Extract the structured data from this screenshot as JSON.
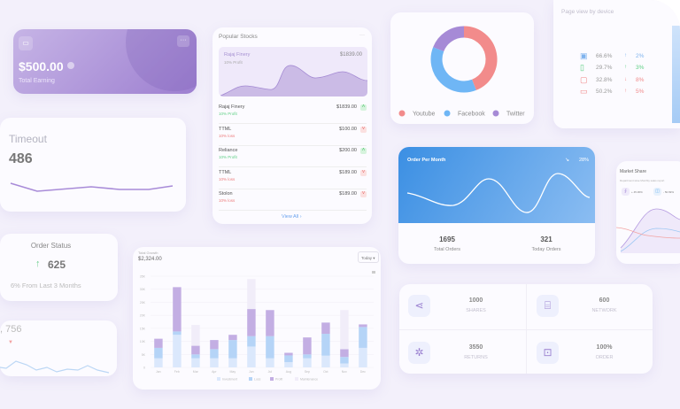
{
  "earning": {
    "amount": "$500.00",
    "label": "Total Earning",
    "menu": "···"
  },
  "timeout": {
    "title": "Timeout",
    "value": "486"
  },
  "order_status": {
    "title": "Order Status",
    "value": "625",
    "sub": "6% From Last 3 Months"
  },
  "card756": {
    "value": ", 756"
  },
  "stocks": {
    "title": "Popular Stocks",
    "menu": "···",
    "featured": {
      "name": "Rajaj Finery",
      "sub": "10% Profit",
      "price": "$1839.00"
    },
    "rows": [
      {
        "name": "Rajaj Finery",
        "sub": "10% Profit",
        "price": "$1839.00",
        "dir": "up"
      },
      {
        "name": "TTML",
        "sub": "10% loss",
        "price": "$100.00",
        "dir": "down"
      },
      {
        "name": "Reliance",
        "sub": "10% Profit",
        "price": "$200.00",
        "dir": "up"
      },
      {
        "name": "TTML",
        "sub": "10% loss",
        "price": "$189.00",
        "dir": "down"
      },
      {
        "name": "Stolon",
        "sub": "10% loss",
        "price": "$189.00",
        "dir": "down"
      }
    ],
    "view_all": "View All"
  },
  "growth": {
    "title": "Total Growth",
    "value": "$2,324.00",
    "dropdown": "Today"
  },
  "chart_data": [
    {
      "type": "bar",
      "stacked": true,
      "categories": [
        "Jan",
        "Feb",
        "Mar",
        "Apr",
        "May",
        "Jun",
        "Jul",
        "Aug",
        "Sep",
        "Oct",
        "Nov",
        "Dec"
      ],
      "ylim": [
        0,
        35000
      ],
      "yticks": [
        "0",
        "5K",
        "10K",
        "15K",
        "20K",
        "25K",
        "30K",
        "35K"
      ],
      "grid": true,
      "legend": "bottom",
      "series": [
        {
          "name": "Investment",
          "color": "#dbe8fc",
          "values": [
            3500,
            12500,
            3500,
            3500,
            3500,
            8000,
            3500,
            2000,
            3500,
            4500,
            1500,
            7500
          ]
        },
        {
          "name": "Loss",
          "color": "#b5d4f7",
          "values": [
            4000,
            1300,
            1500,
            3500,
            7000,
            4000,
            8500,
            2600,
            1500,
            8400,
            2500,
            8000
          ]
        },
        {
          "name": "Profit",
          "color": "#c3aee3",
          "values": [
            3500,
            17000,
            3300,
            3500,
            2000,
            10400,
            10000,
            1000,
            6500,
            4300,
            3000,
            1000
          ]
        },
        {
          "name": "Maintenance",
          "color": "#f1edf9",
          "values": [
            0,
            0,
            8000,
            0,
            0,
            11500,
            0,
            0,
            0,
            0,
            15000,
            0
          ]
        }
      ]
    },
    {
      "type": "pie",
      "donut": true,
      "categories": [
        "Youtube",
        "Facebook",
        "Twitter"
      ],
      "values": [
        44,
        37,
        19
      ],
      "colors": [
        "#f28b8b",
        "#6fb6f5",
        "#a68ad6"
      ],
      "legend": "bottom"
    }
  ],
  "pageview": {
    "title": "Page view by device",
    "rows": [
      {
        "icon": "desktop-icon",
        "pct": "66.6%",
        "change": "2%",
        "dir": "up",
        "color": "#7fb3ee"
      },
      {
        "icon": "mobile-icon",
        "pct": "29.7%",
        "change": "3%",
        "dir": "up",
        "color": "#5fcf85"
      },
      {
        "icon": "tablet-icon",
        "pct": "32.8%",
        "change": "8%",
        "dir": "down",
        "color": "#f08a8a"
      },
      {
        "icon": "laptop-icon",
        "pct": "50.2%",
        "change": "5%",
        "dir": "up",
        "color": "#f08a8a"
      }
    ]
  },
  "opm": {
    "title": "Order Per Month",
    "pct": "28%",
    "total": "1695",
    "total_label": "Total Orders",
    "today": "321",
    "today_label": "Today Orders"
  },
  "market": {
    "title": "Market Share",
    "sub": "Department wise Monthly sales report",
    "a": "+ 45.36%",
    "b": "- 50.69%"
  },
  "stats": [
    {
      "icon": "share-icon",
      "value": "1000",
      "label": "SHARES"
    },
    {
      "icon": "router-icon",
      "value": "600",
      "label": "NETWORK"
    },
    {
      "icon": "atom-icon",
      "value": "3550",
      "label": "RETURNS"
    },
    {
      "icon": "shopping-bag-icon",
      "value": "100%",
      "label": "ORDER"
    }
  ]
}
